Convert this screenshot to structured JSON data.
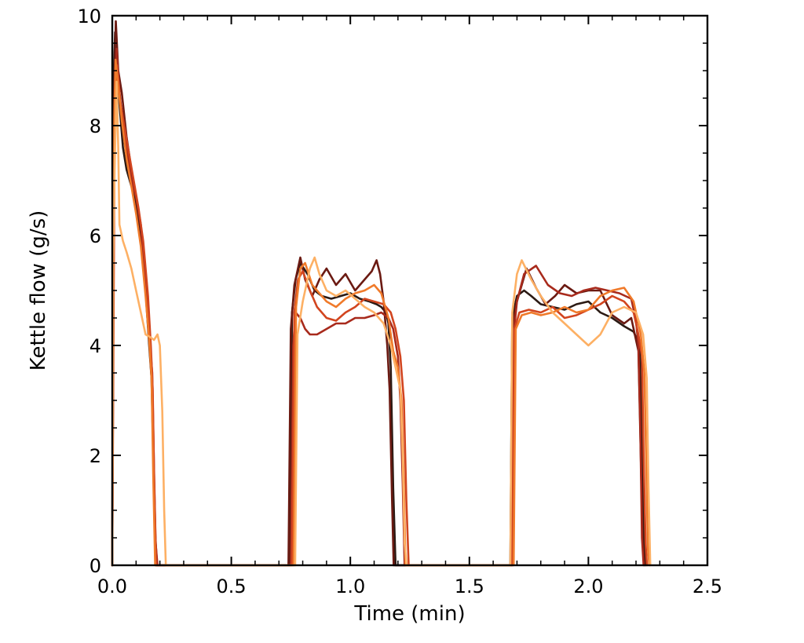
{
  "chart_data": {
    "type": "line",
    "title": "",
    "xlabel": "Time (min)",
    "ylabel": "Kettle flow (g/s)",
    "xlim": [
      0,
      2.5
    ],
    "ylim": [
      0,
      10
    ],
    "x_ticks": [
      0.0,
      0.5,
      1.0,
      1.5,
      2.0,
      2.5
    ],
    "x_tick_labels": [
      "0.0",
      "0.5",
      "1.0",
      "1.5",
      "2.0",
      "2.5"
    ],
    "y_ticks": [
      0,
      2,
      4,
      6,
      8,
      10
    ],
    "y_tick_labels": [
      "0",
      "2",
      "4",
      "6",
      "8",
      "10"
    ],
    "grid": false,
    "legend": "none",
    "series": [
      {
        "color": "#2b1a14",
        "points": [
          [
            0.0,
            0
          ],
          [
            0.004,
            8.6
          ],
          [
            0.012,
            9.7
          ],
          [
            0.02,
            9.2
          ],
          [
            0.03,
            8.4
          ],
          [
            0.045,
            7.6
          ],
          [
            0.06,
            7.2
          ],
          [
            0.08,
            6.9
          ],
          [
            0.1,
            6.6
          ],
          [
            0.12,
            6.0
          ],
          [
            0.14,
            5.0
          ],
          [
            0.155,
            4.0
          ],
          [
            0.165,
            3.4
          ],
          [
            0.172,
            2.0
          ],
          [
            0.178,
            0.8
          ],
          [
            0.185,
            0
          ],
          [
            0.745,
            0
          ],
          [
            0.755,
            4.6
          ],
          [
            0.77,
            5.2
          ],
          [
            0.79,
            5.5
          ],
          [
            0.82,
            5.3
          ],
          [
            0.85,
            5.0
          ],
          [
            0.88,
            4.9
          ],
          [
            0.92,
            4.85
          ],
          [
            0.96,
            4.9
          ],
          [
            1.0,
            4.95
          ],
          [
            1.04,
            4.85
          ],
          [
            1.08,
            4.8
          ],
          [
            1.11,
            4.75
          ],
          [
            1.13,
            4.7
          ],
          [
            1.15,
            4.6
          ],
          [
            1.16,
            4.4
          ],
          [
            1.17,
            3.6
          ],
          [
            1.18,
            1.4
          ],
          [
            1.19,
            0
          ],
          [
            1.672,
            0
          ],
          [
            1.68,
            4.5
          ],
          [
            1.7,
            4.9
          ],
          [
            1.73,
            5.0
          ],
          [
            1.76,
            4.9
          ],
          [
            1.8,
            4.75
          ],
          [
            1.85,
            4.7
          ],
          [
            1.9,
            4.65
          ],
          [
            1.95,
            4.75
          ],
          [
            2.0,
            4.8
          ],
          [
            2.05,
            4.6
          ],
          [
            2.1,
            4.5
          ],
          [
            2.15,
            4.35
          ],
          [
            2.19,
            4.25
          ],
          [
            2.215,
            4.0
          ],
          [
            2.225,
            2.4
          ],
          [
            2.232,
            0.6
          ],
          [
            2.24,
            0
          ]
        ]
      },
      {
        "color": "#6b1a12",
        "points": [
          [
            0.0,
            0
          ],
          [
            0.006,
            8.2
          ],
          [
            0.015,
            9.9
          ],
          [
            0.025,
            9.0
          ],
          [
            0.04,
            8.6
          ],
          [
            0.06,
            7.8
          ],
          [
            0.08,
            7.2
          ],
          [
            0.1,
            6.7
          ],
          [
            0.12,
            6.1
          ],
          [
            0.14,
            5.1
          ],
          [
            0.155,
            4.1
          ],
          [
            0.165,
            3.6
          ],
          [
            0.172,
            2.2
          ],
          [
            0.18,
            0.6
          ],
          [
            0.188,
            0
          ],
          [
            0.74,
            0
          ],
          [
            0.75,
            4.3
          ],
          [
            0.765,
            5.1
          ],
          [
            0.79,
            5.6
          ],
          [
            0.81,
            5.2
          ],
          [
            0.84,
            4.9
          ],
          [
            0.87,
            5.2
          ],
          [
            0.9,
            5.4
          ],
          [
            0.94,
            5.1
          ],
          [
            0.98,
            5.3
          ],
          [
            1.02,
            5.0
          ],
          [
            1.06,
            5.2
          ],
          [
            1.09,
            5.35
          ],
          [
            1.11,
            5.55
          ],
          [
            1.125,
            5.3
          ],
          [
            1.14,
            4.8
          ],
          [
            1.155,
            4.0
          ],
          [
            1.165,
            3.2
          ],
          [
            1.175,
            1.2
          ],
          [
            1.182,
            0
          ],
          [
            1.675,
            0
          ],
          [
            1.683,
            4.4
          ],
          [
            1.7,
            4.8
          ],
          [
            1.74,
            5.4
          ],
          [
            1.78,
            5.05
          ],
          [
            1.82,
            4.75
          ],
          [
            1.86,
            4.9
          ],
          [
            1.9,
            5.1
          ],
          [
            1.95,
            4.95
          ],
          [
            2.0,
            5.0
          ],
          [
            2.05,
            5.0
          ],
          [
            2.1,
            4.55
          ],
          [
            2.15,
            4.4
          ],
          [
            2.18,
            4.5
          ],
          [
            2.2,
            4.1
          ],
          [
            2.21,
            3.9
          ],
          [
            2.22,
            2.0
          ],
          [
            2.228,
            0.4
          ],
          [
            2.235,
            0
          ]
        ]
      },
      {
        "color": "#a82a1c",
        "points": [
          [
            0.0,
            0
          ],
          [
            0.008,
            7.9
          ],
          [
            0.018,
            9.4
          ],
          [
            0.03,
            8.6
          ],
          [
            0.045,
            8.0
          ],
          [
            0.06,
            7.6
          ],
          [
            0.08,
            7.0
          ],
          [
            0.1,
            6.7
          ],
          [
            0.12,
            6.2
          ],
          [
            0.14,
            5.2
          ],
          [
            0.155,
            4.2
          ],
          [
            0.168,
            3.5
          ],
          [
            0.175,
            1.8
          ],
          [
            0.182,
            0.4
          ],
          [
            0.19,
            0
          ],
          [
            0.75,
            0
          ],
          [
            0.76,
            4.0
          ],
          [
            0.77,
            4.6
          ],
          [
            0.79,
            4.5
          ],
          [
            0.81,
            4.3
          ],
          [
            0.83,
            4.2
          ],
          [
            0.86,
            4.2
          ],
          [
            0.9,
            4.3
          ],
          [
            0.94,
            4.4
          ],
          [
            0.98,
            4.4
          ],
          [
            1.02,
            4.5
          ],
          [
            1.06,
            4.5
          ],
          [
            1.1,
            4.55
          ],
          [
            1.13,
            4.6
          ],
          [
            1.16,
            4.5
          ],
          [
            1.18,
            4.3
          ],
          [
            1.2,
            3.8
          ],
          [
            1.21,
            3.0
          ],
          [
            1.22,
            1.5
          ],
          [
            1.228,
            0
          ],
          [
            1.678,
            0
          ],
          [
            1.686,
            4.2
          ],
          [
            1.7,
            4.8
          ],
          [
            1.73,
            5.3
          ],
          [
            1.78,
            5.45
          ],
          [
            1.83,
            5.1
          ],
          [
            1.88,
            4.95
          ],
          [
            1.93,
            4.9
          ],
          [
            1.98,
            5.0
          ],
          [
            2.03,
            5.05
          ],
          [
            2.08,
            5.0
          ],
          [
            2.13,
            4.95
          ],
          [
            2.18,
            4.85
          ],
          [
            2.2,
            4.45
          ],
          [
            2.21,
            4.0
          ],
          [
            2.218,
            2.5
          ],
          [
            2.225,
            0.5
          ],
          [
            2.232,
            0
          ]
        ]
      },
      {
        "color": "#d2451f",
        "points": [
          [
            0.0,
            0
          ],
          [
            0.01,
            8.0
          ],
          [
            0.02,
            9.1
          ],
          [
            0.035,
            8.4
          ],
          [
            0.05,
            8.0
          ],
          [
            0.07,
            7.5
          ],
          [
            0.09,
            7.0
          ],
          [
            0.11,
            6.5
          ],
          [
            0.13,
            5.9
          ],
          [
            0.15,
            4.9
          ],
          [
            0.162,
            4.0
          ],
          [
            0.17,
            3.2
          ],
          [
            0.176,
            1.5
          ],
          [
            0.184,
            0
          ],
          [
            0.755,
            0
          ],
          [
            0.765,
            4.6
          ],
          [
            0.78,
            5.2
          ],
          [
            0.8,
            5.35
          ],
          [
            0.83,
            5.0
          ],
          [
            0.86,
            4.7
          ],
          [
            0.9,
            4.5
          ],
          [
            0.94,
            4.45
          ],
          [
            0.98,
            4.6
          ],
          [
            1.02,
            4.7
          ],
          [
            1.06,
            4.85
          ],
          [
            1.1,
            4.8
          ],
          [
            1.14,
            4.75
          ],
          [
            1.17,
            4.6
          ],
          [
            1.19,
            4.3
          ],
          [
            1.21,
            3.8
          ],
          [
            1.225,
            3.0
          ],
          [
            1.235,
            1.2
          ],
          [
            1.245,
            0
          ],
          [
            1.68,
            0
          ],
          [
            1.69,
            4.3
          ],
          [
            1.71,
            4.6
          ],
          [
            1.75,
            4.65
          ],
          [
            1.8,
            4.6
          ],
          [
            1.85,
            4.7
          ],
          [
            1.9,
            4.5
          ],
          [
            1.95,
            4.55
          ],
          [
            2.0,
            4.65
          ],
          [
            2.05,
            4.75
          ],
          [
            2.1,
            4.9
          ],
          [
            2.15,
            4.8
          ],
          [
            2.19,
            4.6
          ],
          [
            2.21,
            4.2
          ],
          [
            2.225,
            3.8
          ],
          [
            2.232,
            2.0
          ],
          [
            2.24,
            0.4
          ],
          [
            2.246,
            0
          ]
        ]
      },
      {
        "color": "#f07a2a",
        "points": [
          [
            0.0,
            0
          ],
          [
            0.006,
            7.6
          ],
          [
            0.014,
            9.2
          ],
          [
            0.025,
            8.7
          ],
          [
            0.04,
            8.1
          ],
          [
            0.06,
            7.4
          ],
          [
            0.08,
            6.9
          ],
          [
            0.1,
            6.4
          ],
          [
            0.12,
            5.8
          ],
          [
            0.14,
            4.9
          ],
          [
            0.155,
            4.1
          ],
          [
            0.165,
            3.4
          ],
          [
            0.172,
            1.6
          ],
          [
            0.18,
            0
          ],
          [
            0.762,
            0
          ],
          [
            0.772,
            4.7
          ],
          [
            0.79,
            5.4
          ],
          [
            0.81,
            5.5
          ],
          [
            0.84,
            5.1
          ],
          [
            0.87,
            4.95
          ],
          [
            0.9,
            4.8
          ],
          [
            0.94,
            4.7
          ],
          [
            0.98,
            4.85
          ],
          [
            1.02,
            4.95
          ],
          [
            1.06,
            5.0
          ],
          [
            1.1,
            5.1
          ],
          [
            1.13,
            4.95
          ],
          [
            1.16,
            4.5
          ],
          [
            1.18,
            3.9
          ],
          [
            1.2,
            3.6
          ],
          [
            1.215,
            3.0
          ],
          [
            1.225,
            1.4
          ],
          [
            1.232,
            0
          ],
          [
            1.686,
            0
          ],
          [
            1.695,
            4.3
          ],
          [
            1.72,
            4.55
          ],
          [
            1.76,
            4.6
          ],
          [
            1.8,
            4.55
          ],
          [
            1.85,
            4.6
          ],
          [
            1.9,
            4.7
          ],
          [
            1.95,
            4.6
          ],
          [
            2.0,
            4.65
          ],
          [
            2.05,
            4.9
          ],
          [
            2.1,
            5.0
          ],
          [
            2.15,
            5.05
          ],
          [
            2.19,
            4.8
          ],
          [
            2.22,
            4.2
          ],
          [
            2.235,
            3.5
          ],
          [
            2.243,
            1.8
          ],
          [
            2.25,
            0.3
          ],
          [
            2.256,
            0
          ]
        ]
      },
      {
        "color": "#fdb064",
        "points": [
          [
            0.0,
            0
          ],
          [
            0.004,
            5.6
          ],
          [
            0.01,
            7.2
          ],
          [
            0.018,
            8.8
          ],
          [
            0.025,
            7.6
          ],
          [
            0.03,
            6.2
          ],
          [
            0.045,
            5.9
          ],
          [
            0.06,
            5.7
          ],
          [
            0.08,
            5.4
          ],
          [
            0.1,
            5.0
          ],
          [
            0.12,
            4.6
          ],
          [
            0.14,
            4.2
          ],
          [
            0.16,
            4.15
          ],
          [
            0.175,
            4.1
          ],
          [
            0.19,
            4.2
          ],
          [
            0.2,
            4.0
          ],
          [
            0.21,
            2.8
          ],
          [
            0.218,
            1.0
          ],
          [
            0.225,
            0
          ],
          [
            0.768,
            0
          ],
          [
            0.778,
            4.2
          ],
          [
            0.8,
            4.8
          ],
          [
            0.83,
            5.4
          ],
          [
            0.85,
            5.6
          ],
          [
            0.87,
            5.3
          ],
          [
            0.9,
            5.0
          ],
          [
            0.94,
            4.9
          ],
          [
            0.98,
            5.0
          ],
          [
            1.02,
            4.85
          ],
          [
            1.06,
            4.7
          ],
          [
            1.1,
            4.6
          ],
          [
            1.14,
            4.4
          ],
          [
            1.17,
            4.0
          ],
          [
            1.19,
            3.6
          ],
          [
            1.21,
            3.2
          ],
          [
            1.22,
            2.0
          ],
          [
            1.228,
            0.4
          ],
          [
            1.236,
            0
          ],
          [
            1.672,
            0
          ],
          [
            1.68,
            4.6
          ],
          [
            1.7,
            5.3
          ],
          [
            1.72,
            5.55
          ],
          [
            1.76,
            5.2
          ],
          [
            1.8,
            4.9
          ],
          [
            1.85,
            4.6
          ],
          [
            1.9,
            4.4
          ],
          [
            1.95,
            4.2
          ],
          [
            2.0,
            4.0
          ],
          [
            2.05,
            4.2
          ],
          [
            2.1,
            4.6
          ],
          [
            2.15,
            4.7
          ],
          [
            2.2,
            4.6
          ],
          [
            2.23,
            4.2
          ],
          [
            2.245,
            3.4
          ],
          [
            2.252,
            1.5
          ],
          [
            2.26,
            0
          ]
        ]
      }
    ]
  }
}
